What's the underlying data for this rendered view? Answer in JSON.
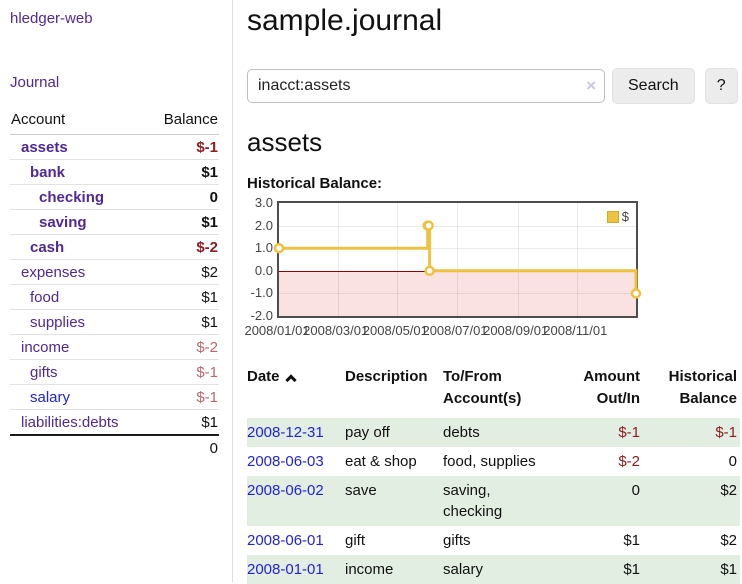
{
  "colors": {
    "link_purple": "#4f2996",
    "link_blue": "#2222dd",
    "negative_strong": "#8f1d21",
    "negative_soft": "#b9676f",
    "row_stripe_green": "#e2eee2",
    "chart_line": "#EDC240",
    "chart_negative_fill": "#fbe2e2",
    "chart_zero_line": "#8b0000"
  },
  "sidebar": {
    "brand": "hledger-web",
    "nav_journal": "Journal",
    "accounts_table": {
      "headers": {
        "account": "Account",
        "balance": "Balance"
      },
      "rows": [
        {
          "name": "assets",
          "balance": "$-1",
          "level": 1,
          "emphasized": true
        },
        {
          "name": "bank",
          "balance": "$1",
          "level": 2,
          "emphasized": true
        },
        {
          "name": "checking",
          "balance": "0",
          "level": 3,
          "emphasized": true
        },
        {
          "name": "saving",
          "balance": "$1",
          "level": 3,
          "emphasized": true
        },
        {
          "name": "cash",
          "balance": "$-2",
          "level": 2,
          "emphasized": true
        },
        {
          "name": "expenses",
          "balance": "$2",
          "level": 1,
          "emphasized": false
        },
        {
          "name": "food",
          "balance": "$1",
          "level": 2,
          "emphasized": false
        },
        {
          "name": "supplies",
          "balance": "$1",
          "level": 2,
          "emphasized": false
        },
        {
          "name": "income",
          "balance": "$-2",
          "level": 1,
          "emphasized": false
        },
        {
          "name": "gifts",
          "balance": "$-1",
          "level": 2,
          "emphasized": false
        },
        {
          "name": "salary",
          "balance": "$-1",
          "level": 2,
          "emphasized": false
        },
        {
          "name": "liabilities:debts",
          "balance": "$1",
          "level": 1,
          "emphasized": false
        }
      ],
      "total": "0"
    }
  },
  "main": {
    "title": "sample.journal",
    "search": {
      "value": "inacct:assets",
      "clear_icon": "×",
      "search_button": "Search",
      "help_button": "?"
    },
    "account_heading": "assets",
    "chart_title": "Historical Balance:"
  },
  "chart_data": {
    "type": "line",
    "step": true,
    "title": "Historical Balance:",
    "x": [
      "2008-01-01",
      "2008-06-01",
      "2008-06-02",
      "2008-06-03",
      "2008-12-31"
    ],
    "series": [
      {
        "name": "$",
        "values": [
          1,
          2,
          2,
          0,
          -1
        ]
      }
    ],
    "xlim": [
      "2008-01-01",
      "2008-12-31"
    ],
    "ylim": [
      -2,
      3
    ],
    "x_ticks": [
      "2008/01/01",
      "2008/03/01",
      "2008/05/01",
      "2008/07/01",
      "2008/09/01",
      "2008/11/01"
    ],
    "y_ticks": [
      "3.0",
      "2.0",
      "1.0",
      "0.0",
      "-1.0",
      "-2.0"
    ],
    "grid": true,
    "legend": {
      "position": "top-right",
      "label": "$"
    },
    "negative_region_shaded": true
  },
  "register": {
    "sort_icon": "chevron-up",
    "headers": {
      "date": "Date",
      "description": "Description",
      "accounts_line1": "To/From",
      "accounts_line2": "Account(s)",
      "amount_line1": "Amount",
      "amount_line2": "Out/In",
      "balance_line1": "Historical",
      "balance_line2": "Balance"
    },
    "rows": [
      {
        "date": "2008-12-31",
        "description": "pay off",
        "accounts": "debts",
        "amount": "$-1",
        "balance": "$-1"
      },
      {
        "date": "2008-06-03",
        "description": "eat & shop",
        "accounts": "food, supplies",
        "amount": "$-2",
        "balance": "0"
      },
      {
        "date": "2008-06-02",
        "description": "save",
        "accounts": "saving, checking",
        "amount": "0",
        "balance": "$2"
      },
      {
        "date": "2008-06-01",
        "description": "gift",
        "accounts": "gifts",
        "amount": "$1",
        "balance": "$2"
      },
      {
        "date": "2008-01-01",
        "description": "income",
        "accounts": "salary",
        "amount": "$1",
        "balance": "$1"
      }
    ]
  }
}
